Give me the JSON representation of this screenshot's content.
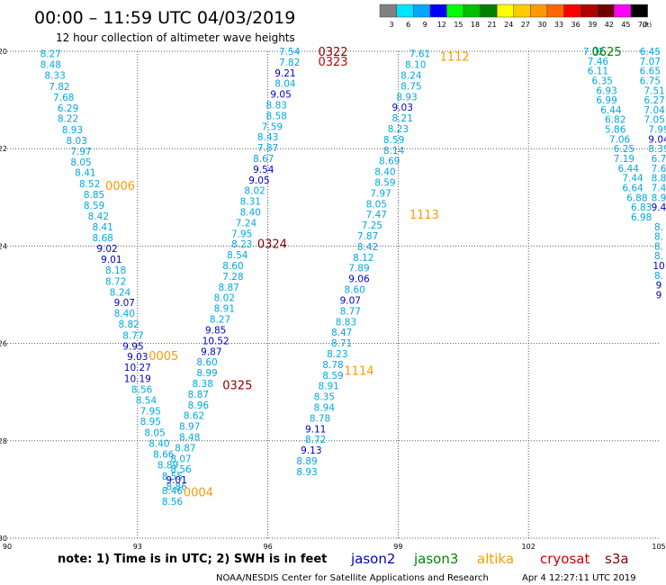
{
  "header": {
    "title": "00:00 – 11:59 UTC 04/03/2019",
    "subtitle": "12 hour collection of altimeter wave heights"
  },
  "color_scale": {
    "labels": [
      "3",
      "6",
      "9",
      "12",
      "15",
      "18",
      "21",
      "24",
      "27",
      "30",
      "33",
      "36",
      "39",
      "42",
      "45",
      "70"
    ],
    "unit": "(ft)",
    "colors": [
      "#808080",
      "#00e5ff",
      "#00a8ff",
      "#0000ff",
      "#00ff00",
      "#00c000",
      "#008000",
      "#ffff00",
      "#ffcc00",
      "#ff9900",
      "#ff6600",
      "#ff0000",
      "#b00000",
      "#700000",
      "#ff00ff",
      "#000000"
    ]
  },
  "footer": {
    "note": "note:  1) Time is in UTC;  2) SWH is in feet",
    "credit": "NOAA/NESDIS Center for Satellite Applications and Research",
    "timestamp": "Apr  4 12:27:11 UTC 2019"
  },
  "legend": [
    {
      "name": "jason2",
      "color": "#0000cc"
    },
    {
      "name": "jason3",
      "color": "#008800"
    },
    {
      "name": "altika",
      "color": "#ff9900"
    },
    {
      "name": "cryosat",
      "color": "#cc0000"
    },
    {
      "name": "s3a",
      "color": "#880000"
    }
  ],
  "chart_data": {
    "type": "scatter",
    "title": "00:00 – 11:59 UTC 04/03/2019",
    "subtitle": "12 hour collection of altimeter wave heights",
    "xlim": [
      90,
      105
    ],
    "ylim": [
      -30,
      -20
    ],
    "x_ticks": [
      90,
      93,
      96,
      99,
      102,
      105
    ],
    "y_ticks": [
      -20,
      -22,
      -24,
      -26,
      -28,
      -30
    ],
    "grid": true,
    "value_colors": {
      "cyan": "#00a8e0",
      "blue": "#0000cc"
    },
    "tracks": [
      {
        "points": [
          [
            91.0,
            -20.05,
            "8.27"
          ],
          [
            91.0,
            -20.27,
            "8.48"
          ],
          [
            91.1,
            -20.49,
            "8.33"
          ],
          [
            91.2,
            -20.72,
            "7.82"
          ],
          [
            91.3,
            -20.94,
            "7.68"
          ],
          [
            91.4,
            -21.16,
            "6.29"
          ],
          [
            91.4,
            -21.38,
            "8.22"
          ],
          [
            91.5,
            -21.61,
            "8.93"
          ],
          [
            91.6,
            -21.83,
            "8.03"
          ],
          [
            91.7,
            -22.05,
            "7.97"
          ],
          [
            91.7,
            -22.27,
            "8.05"
          ],
          [
            91.8,
            -22.49,
            "8.41"
          ],
          [
            91.9,
            -22.72,
            "8.52"
          ],
          [
            92.0,
            -22.94,
            "8.85"
          ],
          [
            92.0,
            -23.16,
            "8.59"
          ],
          [
            92.1,
            -23.38,
            "8.42"
          ],
          [
            92.2,
            -23.6,
            "8.41"
          ],
          [
            92.2,
            -23.83,
            "8.68"
          ],
          [
            92.3,
            -24.05,
            "9.02"
          ],
          [
            92.4,
            -24.27,
            "9.01"
          ],
          [
            92.5,
            -24.49,
            "8.18"
          ],
          [
            92.5,
            -24.72,
            "8.72"
          ],
          [
            92.6,
            -24.94,
            "8.24"
          ],
          [
            92.7,
            -25.16,
            "9.07"
          ],
          [
            92.7,
            -25.38,
            "8.40"
          ],
          [
            92.8,
            -25.6,
            "8.82"
          ],
          [
            92.9,
            -25.83,
            "8.77"
          ],
          [
            92.9,
            -26.05,
            "9.95"
          ],
          [
            93.0,
            -26.27,
            "9.03"
          ],
          [
            93.0,
            -26.49,
            "10.27"
          ],
          [
            93.0,
            -26.72,
            "10.19"
          ],
          [
            93.1,
            -26.94,
            "8.56"
          ],
          [
            93.2,
            -27.16,
            "8.54"
          ],
          [
            93.3,
            -27.38,
            "7.95"
          ],
          [
            93.3,
            -27.6,
            "8.95"
          ],
          [
            93.4,
            -27.83,
            "8.05"
          ],
          [
            93.5,
            -28.05,
            "8.40"
          ],
          [
            93.6,
            -28.27,
            "8.66"
          ],
          [
            93.7,
            -28.49,
            "8.89"
          ],
          [
            93.8,
            -28.72,
            "8.55"
          ],
          [
            93.9,
            -28.94,
            "8.86"
          ]
        ]
      },
      {
        "points": [
          [
            96.5,
            -20.0,
            "7.54"
          ],
          [
            96.5,
            -20.22,
            "7.82"
          ],
          [
            96.4,
            -20.44,
            "9.21"
          ],
          [
            96.4,
            -20.66,
            "8.04"
          ],
          [
            96.3,
            -20.88,
            "9.05"
          ],
          [
            96.2,
            -21.1,
            "8.83"
          ],
          [
            96.2,
            -21.32,
            "8.58"
          ],
          [
            96.1,
            -21.54,
            "7.59"
          ],
          [
            96.0,
            -21.76,
            "8.43"
          ],
          [
            96.0,
            -21.98,
            "7.87"
          ],
          [
            95.9,
            -22.2,
            "8.67"
          ],
          [
            95.9,
            -22.42,
            "9.54"
          ],
          [
            95.8,
            -22.64,
            "9.05"
          ],
          [
            95.7,
            -22.86,
            "8.02"
          ],
          [
            95.6,
            -23.08,
            "8.31"
          ],
          [
            95.6,
            -23.3,
            "8.40"
          ],
          [
            95.5,
            -23.52,
            "7.24"
          ],
          [
            95.4,
            -23.74,
            "7.95"
          ],
          [
            95.4,
            -23.96,
            "8.23"
          ],
          [
            95.3,
            -24.18,
            "8.54"
          ],
          [
            95.2,
            -24.4,
            "8.60"
          ],
          [
            95.2,
            -24.62,
            "7.28"
          ],
          [
            95.1,
            -24.84,
            "8.87"
          ],
          [
            95.0,
            -25.06,
            "8.02"
          ],
          [
            95.0,
            -25.28,
            "8.91"
          ],
          [
            94.9,
            -25.5,
            "8.27"
          ],
          [
            94.8,
            -25.72,
            "9.85"
          ],
          [
            94.8,
            -25.94,
            "10.52"
          ],
          [
            94.7,
            -26.16,
            "9.87"
          ],
          [
            94.6,
            -26.38,
            "8.60"
          ],
          [
            94.6,
            -26.6,
            "8.99"
          ],
          [
            94.5,
            -26.82,
            "8.38"
          ],
          [
            94.4,
            -27.04,
            "8.87"
          ],
          [
            94.4,
            -27.26,
            "8.96"
          ],
          [
            94.3,
            -27.48,
            "8.62"
          ],
          [
            94.2,
            -27.7,
            "8.97"
          ],
          [
            94.2,
            -27.92,
            "8.48"
          ],
          [
            94.1,
            -28.14,
            "8.87"
          ],
          [
            94.0,
            -28.36,
            "8.07"
          ],
          [
            94.0,
            -28.58,
            "8.56"
          ],
          [
            93.9,
            -28.8,
            "9.01"
          ],
          [
            93.8,
            -29.02,
            "8.46"
          ],
          [
            93.8,
            -29.24,
            "8.56"
          ]
        ]
      },
      {
        "points": [
          [
            99.5,
            -20.05,
            "7.61"
          ],
          [
            99.4,
            -20.27,
            "8.10"
          ],
          [
            99.3,
            -20.49,
            "8.24"
          ],
          [
            99.3,
            -20.71,
            "8.75"
          ],
          [
            99.2,
            -20.93,
            "8.93"
          ],
          [
            99.1,
            -21.15,
            "9.03"
          ],
          [
            99.1,
            -21.37,
            "8.21"
          ],
          [
            99.0,
            -21.59,
            "8.23"
          ],
          [
            98.9,
            -21.81,
            "8.59"
          ],
          [
            98.9,
            -22.03,
            "8.14"
          ],
          [
            98.8,
            -22.25,
            "8.69"
          ],
          [
            98.7,
            -22.47,
            "8.40"
          ],
          [
            98.7,
            -22.69,
            "8.59"
          ],
          [
            98.6,
            -22.91,
            "7.97"
          ],
          [
            98.5,
            -23.13,
            "8.05"
          ],
          [
            98.5,
            -23.35,
            "7.47"
          ],
          [
            98.4,
            -23.57,
            "7.25"
          ],
          [
            98.3,
            -23.79,
            "7.87"
          ],
          [
            98.3,
            -24.01,
            "8.42"
          ],
          [
            98.2,
            -24.23,
            "8.12"
          ],
          [
            98.1,
            -24.45,
            "7.89"
          ],
          [
            98.1,
            -24.67,
            "9.06"
          ],
          [
            98.0,
            -24.89,
            "8.60"
          ],
          [
            97.9,
            -25.11,
            "9.07"
          ],
          [
            97.9,
            -25.33,
            "8.77"
          ],
          [
            97.8,
            -25.55,
            "8.83"
          ],
          [
            97.7,
            -25.77,
            "8.47"
          ],
          [
            97.7,
            -25.99,
            "8.71"
          ],
          [
            97.6,
            -26.21,
            "8.23"
          ],
          [
            97.5,
            -26.43,
            "8.78"
          ],
          [
            97.5,
            -26.65,
            "8.59"
          ],
          [
            97.4,
            -26.87,
            "8.91"
          ],
          [
            97.3,
            -27.09,
            "8.35"
          ],
          [
            97.3,
            -27.31,
            "8.94"
          ],
          [
            97.2,
            -27.53,
            "8.78"
          ],
          [
            97.1,
            -27.75,
            "9.11"
          ],
          [
            97.1,
            -27.97,
            "8.72"
          ],
          [
            97.0,
            -28.19,
            "9.13"
          ],
          [
            96.9,
            -28.41,
            "8.89"
          ],
          [
            96.9,
            -28.63,
            "8.93"
          ]
        ]
      },
      {
        "points": [
          [
            103.5,
            -20.0,
            "7.02"
          ],
          [
            103.6,
            -20.2,
            "7.46"
          ],
          [
            103.6,
            -20.4,
            "6.11"
          ],
          [
            103.7,
            -20.6,
            "6.35"
          ],
          [
            103.8,
            -20.8,
            "6.93"
          ],
          [
            103.8,
            -21.0,
            "6.99"
          ],
          [
            103.9,
            -21.2,
            "6.44"
          ],
          [
            104.0,
            -21.4,
            "6.82"
          ],
          [
            104.0,
            -21.6,
            "5.86"
          ],
          [
            104.1,
            -21.8,
            "7.06"
          ],
          [
            104.2,
            -22.0,
            "6.25"
          ],
          [
            104.2,
            -22.2,
            "7.19"
          ],
          [
            104.3,
            -22.4,
            "6.44"
          ],
          [
            104.4,
            -22.6,
            "7.44"
          ],
          [
            104.4,
            -22.8,
            "6.64"
          ],
          [
            104.5,
            -23.0,
            "6.88"
          ],
          [
            104.6,
            -23.2,
            "6.83"
          ],
          [
            104.6,
            -23.4,
            "6.98"
          ]
        ]
      },
      {
        "points": [
          [
            104.8,
            -20.0,
            "6.45"
          ],
          [
            104.8,
            -20.2,
            "7.07"
          ],
          [
            104.8,
            -20.4,
            "6.65"
          ],
          [
            104.8,
            -20.6,
            "6.75"
          ],
          [
            104.9,
            -20.8,
            "7.51"
          ],
          [
            104.9,
            -21.0,
            "6.27"
          ],
          [
            104.9,
            -21.2,
            "7.04"
          ],
          [
            104.9,
            -21.4,
            "7.05"
          ],
          [
            105.0,
            -21.6,
            "7.99"
          ],
          [
            105.0,
            -21.8,
            "9.04"
          ],
          [
            105.0,
            -22.0,
            "8.39"
          ],
          [
            105.0,
            -22.2,
            "6.7"
          ],
          [
            105.0,
            -22.4,
            "7.6"
          ],
          [
            105.0,
            -22.6,
            "8.8"
          ],
          [
            105.0,
            -22.8,
            "7.4"
          ],
          [
            105.0,
            -23.0,
            "8.9"
          ],
          [
            105.0,
            -23.2,
            "9.4"
          ]
        ]
      },
      {
        "points": [
          [
            105.0,
            -23.6,
            "8."
          ],
          [
            105.0,
            -23.8,
            "8."
          ],
          [
            105.0,
            -24.0,
            "8."
          ],
          [
            105.0,
            -24.2,
            "8."
          ],
          [
            105.0,
            -24.4,
            "10"
          ],
          [
            105.0,
            -24.6,
            "8."
          ],
          [
            105.0,
            -24.8,
            "9"
          ],
          [
            105.0,
            -25.0,
            "9"
          ]
        ]
      }
    ],
    "time_labels": [
      {
        "x": 97.5,
        "y": -20.0,
        "text": "0322",
        "color": "#880000"
      },
      {
        "x": 97.5,
        "y": -20.2,
        "text": "0323",
        "color": "#cc0000"
      },
      {
        "x": 100.3,
        "y": -20.1,
        "text": "1112",
        "color": "#ff9900"
      },
      {
        "x": 103.8,
        "y": -20.0,
        "text": "0625",
        "color": "#008800"
      },
      {
        "x": 92.6,
        "y": -22.75,
        "text": "0006",
        "color": "#ff9900"
      },
      {
        "x": 99.6,
        "y": -23.35,
        "text": "1113",
        "color": "#ff9900"
      },
      {
        "x": 96.1,
        "y": -23.95,
        "text": "0324",
        "color": "#880000"
      },
      {
        "x": 93.6,
        "y": -26.25,
        "text": "0005",
        "color": "#ff9900"
      },
      {
        "x": 98.1,
        "y": -26.55,
        "text": "1114",
        "color": "#ff9900"
      },
      {
        "x": 95.3,
        "y": -26.85,
        "text": "0325",
        "color": "#880000"
      },
      {
        "x": 94.4,
        "y": -29.05,
        "text": "0004",
        "color": "#ff9900"
      }
    ]
  }
}
